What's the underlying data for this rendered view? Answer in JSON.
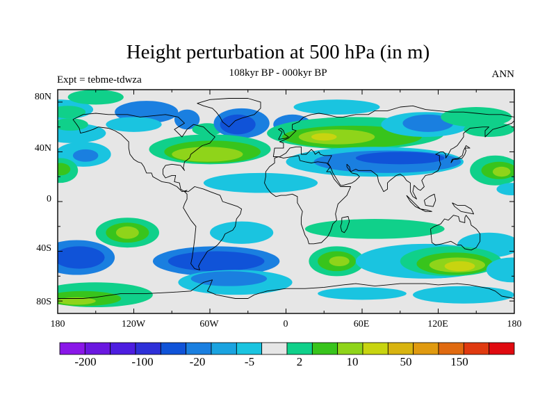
{
  "title": "Height perturbation at 500 hPa (in m)",
  "subtitle": "108kyr BP - 000kyr BP",
  "left_label": "Expt = tebme-tdwza",
  "right_label": "ANN",
  "axes": {
    "y_ticks": [
      "80N",
      "40N",
      "0",
      "40S",
      "80S"
    ],
    "x_ticks": [
      "180",
      "120W",
      "60W",
      "0",
      "60E",
      "120E",
      "180"
    ]
  },
  "colorbar": {
    "colors": [
      "#8a17e8",
      "#6a18e0",
      "#4d1de0",
      "#2e30d8",
      "#1053d8",
      "#1a7fe0",
      "#1aa3e0",
      "#1ac4e0",
      "#e6e6e6",
      "#10d08a",
      "#38c41c",
      "#8fd41a",
      "#c8d410",
      "#d8b410",
      "#e09a10",
      "#e06a10",
      "#e03a10",
      "#e00a10"
    ],
    "labels": [
      "-200",
      "-100",
      "-20",
      "-5",
      "2",
      "10",
      "50",
      "150"
    ]
  },
  "map": {
    "background_color": "#e6e6e6",
    "field": [
      {
        "color": "#1ac4e0",
        "lon": -178,
        "lat": 74,
        "rx": 26,
        "ry": 8
      },
      {
        "color": "#10d08a",
        "lon": -172,
        "lat": 72,
        "rx": 14,
        "ry": 5
      },
      {
        "color": "#10d08a",
        "lon": -150,
        "lat": 84,
        "rx": 22,
        "ry": 6
      },
      {
        "color": "#1a7fe0",
        "lon": -110,
        "lat": 72,
        "rx": 25,
        "ry": 9
      },
      {
        "color": "#1ac4e0",
        "lon": -120,
        "lat": 62,
        "rx": 22,
        "ry": 6
      },
      {
        "color": "#1a7fe0",
        "lon": -78,
        "lat": 66,
        "rx": 10,
        "ry": 8
      },
      {
        "color": "#10d08a",
        "lon": -62,
        "lat": 58,
        "rx": 12,
        "ry": 5
      },
      {
        "color": "#1ac4e0",
        "lon": -168,
        "lat": 55,
        "rx": 26,
        "ry": 8
      },
      {
        "color": "#10d08a",
        "lon": -170,
        "lat": 62,
        "rx": 14,
        "ry": 5
      },
      {
        "color": "#1a7fe0",
        "lon": -35,
        "lat": 63,
        "rx": 22,
        "ry": 12
      },
      {
        "color": "#1053d8",
        "lon": -38,
        "lat": 62,
        "rx": 14,
        "ry": 8
      },
      {
        "color": "#1a7fe0",
        "lon": 5,
        "lat": 62,
        "rx": 15,
        "ry": 8
      },
      {
        "color": "#1ac4e0",
        "lon": 40,
        "lat": 76,
        "rx": 34,
        "ry": 6
      },
      {
        "color": "#10d08a",
        "lon": -60,
        "lat": 42,
        "rx": 48,
        "ry": 12
      },
      {
        "color": "#38c41c",
        "lon": -58,
        "lat": 40,
        "rx": 38,
        "ry": 9
      },
      {
        "color": "#8fd41a",
        "lon": -62,
        "lat": 38,
        "rx": 28,
        "ry": 6
      },
      {
        "color": "#10d08a",
        "lon": 55,
        "lat": 55,
        "rx": 70,
        "ry": 13
      },
      {
        "color": "#38c41c",
        "lon": 52,
        "lat": 52,
        "rx": 55,
        "ry": 9
      },
      {
        "color": "#8fd41a",
        "lon": 40,
        "lat": 52,
        "rx": 30,
        "ry": 6
      },
      {
        "color": "#c8d410",
        "lon": 30,
        "lat": 52,
        "rx": 10,
        "ry": 3
      },
      {
        "color": "#1ac4e0",
        "lon": 110,
        "lat": 62,
        "rx": 35,
        "ry": 10
      },
      {
        "color": "#1a7fe0",
        "lon": 112,
        "lat": 63,
        "rx": 20,
        "ry": 7
      },
      {
        "color": "#10d08a",
        "lon": 150,
        "lat": 68,
        "rx": 28,
        "ry": 8
      },
      {
        "color": "#10d08a",
        "lon": 160,
        "lat": 58,
        "rx": 20,
        "ry": 6
      },
      {
        "color": "#1ac4e0",
        "lon": -160,
        "lat": 38,
        "rx": 22,
        "ry": 10
      },
      {
        "color": "#1a7fe0",
        "lon": -158,
        "lat": 37,
        "rx": 10,
        "ry": 5
      },
      {
        "color": "#1ac4e0",
        "lon": -20,
        "lat": 15,
        "rx": 45,
        "ry": 8
      },
      {
        "color": "#1ac4e0",
        "lon": 70,
        "lat": 32,
        "rx": 70,
        "ry": 12
      },
      {
        "color": "#1a7fe0",
        "lon": 80,
        "lat": 32,
        "rx": 58,
        "ry": 9
      },
      {
        "color": "#1053d8",
        "lon": 90,
        "lat": 35,
        "rx": 35,
        "ry": 5
      },
      {
        "color": "#10d08a",
        "lon": -178,
        "lat": 25,
        "rx": 14,
        "ry": 10
      },
      {
        "color": "#38c41c",
        "lon": -178,
        "lat": 26,
        "rx": 8,
        "ry": 5
      },
      {
        "color": "#10d08a",
        "lon": 165,
        "lat": 25,
        "rx": 20,
        "ry": 12
      },
      {
        "color": "#38c41c",
        "lon": 168,
        "lat": 25,
        "rx": 14,
        "ry": 7
      },
      {
        "color": "#8fd41a",
        "lon": 170,
        "lat": 24,
        "rx": 7,
        "ry": 4
      },
      {
        "color": "#1ac4e0",
        "lon": 178,
        "lat": 10,
        "rx": 12,
        "ry": 5
      },
      {
        "color": "#10d08a",
        "lon": -125,
        "lat": -25,
        "rx": 25,
        "ry": 12
      },
      {
        "color": "#38c41c",
        "lon": -125,
        "lat": -25,
        "rx": 17,
        "ry": 8
      },
      {
        "color": "#8fd41a",
        "lon": -125,
        "lat": -25,
        "rx": 9,
        "ry": 5
      },
      {
        "color": "#1ac4e0",
        "lon": -35,
        "lat": -25,
        "rx": 25,
        "ry": 9
      },
      {
        "color": "#10d08a",
        "lon": 70,
        "lat": -22,
        "rx": 55,
        "ry": 8
      },
      {
        "color": "#1ac4e0",
        "lon": 160,
        "lat": -35,
        "rx": 25,
        "ry": 10
      },
      {
        "color": "#1a7fe0",
        "lon": -165,
        "lat": -45,
        "rx": 30,
        "ry": 14
      },
      {
        "color": "#1053d8",
        "lon": -163,
        "lat": -45,
        "rx": 20,
        "ry": 9
      },
      {
        "color": "#1a7fe0",
        "lon": -55,
        "lat": -48,
        "rx": 50,
        "ry": 12
      },
      {
        "color": "#1053d8",
        "lon": -55,
        "lat": -48,
        "rx": 38,
        "ry": 8
      },
      {
        "color": "#10d08a",
        "lon": 40,
        "lat": -48,
        "rx": 22,
        "ry": 12
      },
      {
        "color": "#38c41c",
        "lon": 40,
        "lat": -48,
        "rx": 15,
        "ry": 8
      },
      {
        "color": "#8fd41a",
        "lon": 42,
        "lat": -48,
        "rx": 8,
        "ry": 4
      },
      {
        "color": "#1ac4e0",
        "lon": 110,
        "lat": -48,
        "rx": 55,
        "ry": 14
      },
      {
        "color": "#10d08a",
        "lon": 130,
        "lat": -48,
        "rx": 40,
        "ry": 12
      },
      {
        "color": "#38c41c",
        "lon": 133,
        "lat": -50,
        "rx": 30,
        "ry": 9
      },
      {
        "color": "#8fd41a",
        "lon": 135,
        "lat": -51,
        "rx": 22,
        "ry": 6
      },
      {
        "color": "#c8d410",
        "lon": 137,
        "lat": -52,
        "rx": 12,
        "ry": 4
      },
      {
        "color": "#1ac4e0",
        "lon": 178,
        "lat": -55,
        "rx": 20,
        "ry": 10
      },
      {
        "color": "#1ac4e0",
        "lon": -40,
        "lat": -65,
        "rx": 45,
        "ry": 10
      },
      {
        "color": "#1a7fe0",
        "lon": -45,
        "lat": -62,
        "rx": 30,
        "ry": 6
      },
      {
        "color": "#1ac4e0",
        "lon": 140,
        "lat": -75,
        "rx": 40,
        "ry": 7
      },
      {
        "color": "#1ac4e0",
        "lon": 60,
        "lat": -74,
        "rx": 35,
        "ry": 5
      },
      {
        "color": "#10d08a",
        "lon": -150,
        "lat": -75,
        "rx": 45,
        "ry": 10
      },
      {
        "color": "#38c41c",
        "lon": -160,
        "lat": -78,
        "rx": 30,
        "ry": 6
      },
      {
        "color": "#8fd41a",
        "lon": -165,
        "lat": -80,
        "rx": 15,
        "ry": 3
      }
    ],
    "coastlines": [
      "-168,66 -160,70 -150,71 -140,70 -125,70 -115,68 -95,70 -85,68 -80,63 -88,58 -82,52 -78,58 -73,62 -65,60 -60,55 -56,52 -60,47 -66,45 -70,42 -75,38 -76,35 -80,32 -81,27 -80,25 -83,29 -90,30 -95,29 -97,26 -97,22 -95,19 -90,21 -87,21 -88,16 -84,15 -83,10 -80,8 -78,9 -82,8 -86,12 -92,15 -98,16 -105,20 -106,23 -110,23 -112,28 -114,31 -117,32 -120,34 -123,38 -124,43 -124,48 -126,50 -130,54 -135,57 -140,59 -148,60 -152,58 -158,56 -162,55 -163,59 -165,62 -168,66",
      "-80,8 -77,8 -72,12 -65,10 -60,8 -52,5 -50,0 -44,-2 -38,-4 -35,-6 -36,-10 -39,-14 -40,-20 -42,-23 -48,-26 -50,-30 -54,-35 -58,-38 -62,-40 -65,-45 -67,-48 -69,-52 -68,-55 -72,-54 -75,-50 -74,-45 -73,-38 -72,-30 -71,-20 -75,-15 -78,-10 -81,-5 -80,-2 -78,2 -78,6 -80,8",
      "-45,60 -40,65 -35,67 -25,70 -20,75 -20,80 -30,83 -45,83 -60,82 -70,79 -65,77 -58,75 -55,72 -52,68 -50,64 -45,60",
      "-10,36 -9,43 -2,43 -2,47 -5,48 2,51 5,54 8,57 5,58 5,62 10,64 14,68 20,70 26,71 32,70 40,68 45,68 55,70 65,70 70,73 80,73 90,76 100,77 110,74 120,73 130,72 140,72 150,71 160,70 170,70 180,68",
      "180,65 178,63 170,60 163,58 160,55 157,52 157,57 160,60 155,60 145,59 140,55 140,52 135,45 132,43 130,42 128,38 126,35 126,38 124,40 122,40 118,38 121,37 121,33 122,30 120,25 115,22 110,21 107,17 109,12 106,9 104,10 101,13 100,8 103,2 100,4 98,8 98,15 95,17 93,20 90,22 87,21 82,17 80,15 80,10 77,8 73,16 72,21 67,25 62,25 57,25 55,26 51,24 50,28 48,30 48,28 50,25 52,23 56,22 58,20 55,17 52,15 45,13 43,13 40,18 37,23 35,28 33,31 35,35 36,37 30,37 27,38 26,40 23,38 22,40 20,42 18,40 16,38 12,38 12,44 8,44 3,43 0,39 -5,36 -10,36",
      "-10,36 -6,36 -2,35 10,37 11,33 15,32 20,31 25,32 32,31 35,28 32,24 35,24 38,18 43,12 51,12 48,5 45,2 41,-2 40,-6 39,-10 40,-15 37,-18 35,-24 33,-28 28,-33 22,-34 18,-34 17,-30 15,-27 12,-18 12,-13 13,-8 9,-1 9,4 5,6 0,5 -4,5 -8,4 -12,7 -15,11 -17,15 -16,20 -16,24 -13,28 -9,31 -9,35 -6,36",
      "114,-22 115,-33 118,-35 123,-34 130,-32 135,-35 138,-35 141,-38 146,-39 150,-37 153,-32 153,-26 150,-22 146,-19 145,-15 142,-11 141,-13 141,-17 137,-16 136,-12 132,-11 130,-13 128,-15 125,-14 122,-18 117,-20 114,-22",
      "44,-13 49,-12 50,-16 48,-22 46,-25 44,-24 43,-20 44,-17 44,-13",
      "-6,50 -5,52 -3,56 -6,58 -4,59 -2,57 -1,54 2,52 0,51 -6,50",
      "130,31 132,34 135,34 139,35 141,38 142,41 141,43 145,43 142,45 140,41 139,37 136,35 131,34 130,31",
      "95,5 98,2 102,-2 105,-5 106,-6 102,-4 98,0 95,5",
      "106,-6 112,-7 115,-8 110,-8 106,-6",
      "109,1 110,-3 116,-4 118,1 117,6 113,4 109,1",
      "131,-1 135,-3 141,-3 146,-6 148,-10 143,-9 138,-8 133,-4 131,-1",
      "-180,-78 -160,-78 -150,-77 -130,-74 -110,-74 -90,-73 -75,-72 -65,-65 -58,-63 -60,-68 -62,-72 -55,-75 -40,-78 -30,-78 -25,-75 -15,-72 0,-70 15,-70 30,-69 45,-67 55,-66 70,-68 80,-67 90,-66 100,-66 110,-66 120,-67 135,-66 145,-67 160,-70 165,-72 170,-76 180,-78"
    ]
  }
}
